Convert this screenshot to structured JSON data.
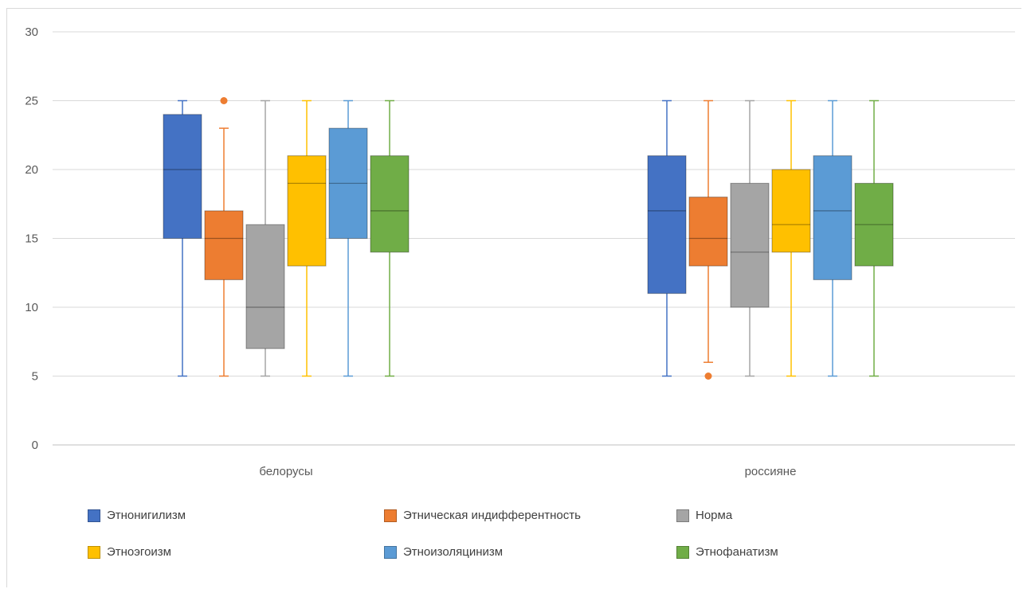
{
  "chart_data": {
    "type": "boxplot",
    "title": "",
    "xlabel": "",
    "ylabel": "",
    "ylim": [
      0,
      30
    ],
    "yticks": [
      0,
      5,
      10,
      15,
      20,
      25,
      30
    ],
    "grid": true,
    "legend_position": "bottom",
    "categories": [
      "белорусы",
      "россияне"
    ],
    "series": [
      {
        "name": "Этнонигилизм",
        "color": "#4472C4",
        "boxes": [
          {
            "min": 5,
            "q1": 15,
            "median": 20,
            "q3": 24,
            "max": 25,
            "outliers": []
          },
          {
            "min": 5,
            "q1": 11,
            "median": 17,
            "q3": 21,
            "max": 25,
            "outliers": []
          }
        ]
      },
      {
        "name": "Этническая индифферентность",
        "color": "#ED7D31",
        "boxes": [
          {
            "min": 5,
            "q1": 12,
            "median": 15,
            "q3": 17,
            "max": 23,
            "outliers": [
              25
            ]
          },
          {
            "min": 6,
            "q1": 13,
            "median": 15,
            "q3": 18,
            "max": 25,
            "outliers": [
              5
            ]
          }
        ]
      },
      {
        "name": "Норма",
        "color": "#A5A5A5",
        "boxes": [
          {
            "min": 5,
            "q1": 7,
            "median": 10,
            "q3": 16,
            "max": 25,
            "outliers": []
          },
          {
            "min": 5,
            "q1": 10,
            "median": 14,
            "q3": 19,
            "max": 25,
            "outliers": []
          }
        ]
      },
      {
        "name": "Этноэгоизм",
        "color": "#FFC000",
        "boxes": [
          {
            "min": 5,
            "q1": 13,
            "median": 19,
            "q3": 21,
            "max": 25,
            "outliers": []
          },
          {
            "min": 5,
            "q1": 14,
            "median": 16,
            "q3": 20,
            "max": 25,
            "outliers": []
          }
        ]
      },
      {
        "name": "Этноизоляцинизм",
        "color": "#5B9BD5",
        "boxes": [
          {
            "min": 5,
            "q1": 15,
            "median": 19,
            "q3": 23,
            "max": 25,
            "outliers": []
          },
          {
            "min": 5,
            "q1": 12,
            "median": 17,
            "q3": 21,
            "max": 25,
            "outliers": []
          }
        ]
      },
      {
        "name": "Этнофанатизм",
        "color": "#70AD47",
        "boxes": [
          {
            "min": 5,
            "q1": 14,
            "median": 17,
            "q3": 21,
            "max": 25,
            "outliers": []
          },
          {
            "min": 5,
            "q1": 13,
            "median": 16,
            "q3": 19,
            "max": 25,
            "outliers": []
          }
        ]
      }
    ]
  }
}
